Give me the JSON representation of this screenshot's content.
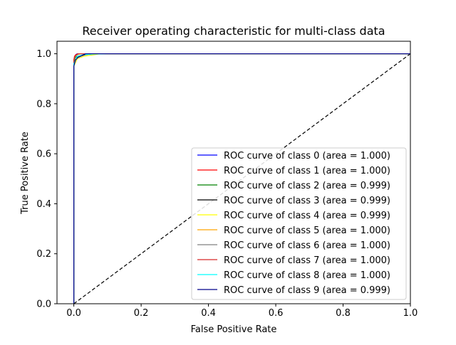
{
  "chart_data": {
    "type": "line",
    "title": "Receiver operating characteristic for multi-class data",
    "xlabel": "False Positive Rate",
    "ylabel": "True Positive Rate",
    "xlim": [
      -0.05,
      1.0
    ],
    "ylim": [
      0.0,
      1.05
    ],
    "xticks": [
      0.0,
      0.2,
      0.4,
      0.6,
      0.8,
      1.0
    ],
    "xtick_labels": [
      "0.0",
      "0.2",
      "0.4",
      "0.6",
      "0.8",
      "1.0"
    ],
    "yticks": [
      0.0,
      0.2,
      0.4,
      0.6,
      0.8,
      1.0
    ],
    "ytick_labels": [
      "0.0",
      "0.2",
      "0.4",
      "0.6",
      "0.8",
      "1.0"
    ],
    "grid": false,
    "legend_position": "lower-right",
    "reference_line": {
      "x": [
        0,
        1
      ],
      "y": [
        0,
        1
      ],
      "style": "dashed",
      "color": "#000000"
    },
    "series": [
      {
        "name": "ROC curve of class 0 (area = 1.000)",
        "color": "#0000ff",
        "x": [
          0,
          0,
          0.003,
          0.006,
          0.01,
          1
        ],
        "y": [
          0,
          0.97,
          0.99,
          0.997,
          1.0,
          1.0
        ]
      },
      {
        "name": "ROC curve of class 1 (area = 1.000)",
        "color": "#ff0000",
        "x": [
          0,
          0,
          0.002,
          0.005,
          0.012,
          1
        ],
        "y": [
          0,
          0.975,
          0.99,
          0.995,
          1.0,
          1.0
        ]
      },
      {
        "name": "ROC curve of class 2 (area = 0.999)",
        "color": "#008000",
        "x": [
          0,
          0,
          0.004,
          0.01,
          0.03,
          0.06,
          1
        ],
        "y": [
          0,
          0.96,
          0.985,
          0.99,
          0.995,
          1.0,
          1.0
        ]
      },
      {
        "name": "ROC curve of class 3 (area = 0.999)",
        "color": "#000000",
        "x": [
          0,
          0,
          0.005,
          0.01,
          0.02,
          0.04,
          1
        ],
        "y": [
          0,
          0.96,
          0.975,
          0.985,
          0.99,
          1.0,
          1.0
        ]
      },
      {
        "name": "ROC curve of class 4 (area = 0.999)",
        "color": "#ffff00",
        "x": [
          0,
          0,
          0.01,
          0.03,
          0.08,
          1
        ],
        "y": [
          0,
          0.95,
          0.98,
          0.99,
          1.0,
          1.0
        ]
      },
      {
        "name": "ROC curve of class 5 (area = 1.000)",
        "color": "#ffa500",
        "x": [
          0,
          0,
          0.004,
          0.012,
          0.02,
          1
        ],
        "y": [
          0,
          0.97,
          0.99,
          0.997,
          1.0,
          1.0
        ]
      },
      {
        "name": "ROC curve of class 6 (area = 1.000)",
        "color": "#808080",
        "x": [
          0,
          0,
          0.004,
          0.009,
          0.015,
          1
        ],
        "y": [
          0,
          0.975,
          0.99,
          0.996,
          1.0,
          1.0
        ]
      },
      {
        "name": "ROC curve of class 7 (area = 1.000)",
        "color": "#d62728",
        "x": [
          0,
          0,
          0.003,
          0.007,
          0.012,
          1
        ],
        "y": [
          0,
          0.975,
          0.99,
          0.995,
          1.0,
          1.0
        ]
      },
      {
        "name": "ROC curve of class 8 (area = 1.000)",
        "color": "#00ffff",
        "x": [
          0,
          0,
          0.01,
          0.03,
          0.06,
          0.1,
          1
        ],
        "y": [
          0,
          0.96,
          0.99,
          0.997,
          0.999,
          1.0,
          1.0
        ]
      },
      {
        "name": "ROC curve of class 9 (area = 0.999)",
        "color": "#00008b",
        "x": [
          0,
          0,
          0.005,
          0.012,
          0.02,
          0.035,
          1
        ],
        "y": [
          0,
          0.95,
          0.975,
          0.985,
          0.99,
          1.0,
          1.0
        ]
      }
    ]
  }
}
